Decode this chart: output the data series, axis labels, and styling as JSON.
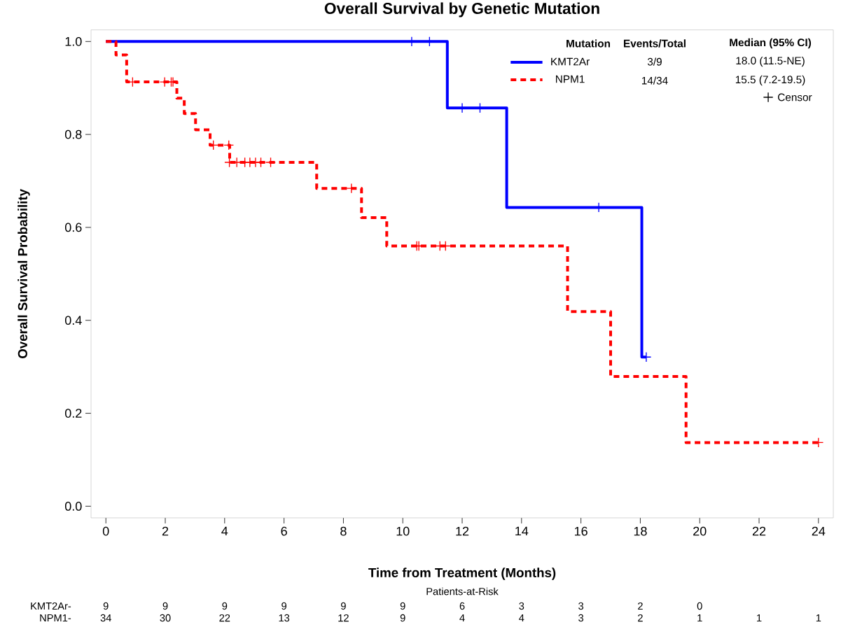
{
  "chart_data": {
    "type": "step",
    "title": "Overall Survival by Genetic Mutation",
    "xlabel": "Time from Treatment (Months)",
    "ylabel": "Overall Survival Probability",
    "legend_title": "Mutation",
    "legend": "top right",
    "xlim": [
      -0.5,
      24.5
    ],
    "ylim": [
      -0.025,
      1.025
    ],
    "xticks": [
      0,
      2,
      4,
      6,
      8,
      10,
      12,
      14,
      16,
      18,
      20,
      22,
      24
    ],
    "yticks": [
      {
        "value": 0,
        "label": "0.0"
      },
      {
        "value": 0.2,
        "label": "0.2"
      },
      {
        "value": 0.4,
        "label": "0.4"
      },
      {
        "value": 0.6,
        "label": "0.6"
      },
      {
        "value": 0.8,
        "label": "0.8"
      },
      {
        "value": 1,
        "label": "1.0"
      }
    ],
    "series": [
      {
        "name": "KMT2Ar",
        "color": "#0000ff",
        "line_style": "solid",
        "x": [
          0,
          11.5,
          13.5,
          18.05,
          18.2
        ],
        "values": [
          1,
          0.857,
          0.643,
          0.321,
          0.321
        ]
      },
      {
        "name": "NPM1",
        "color": "#ff0000",
        "line_style": "dashed",
        "x": [
          0,
          0.34,
          0.7,
          2.39,
          2.64,
          3.02,
          3.51,
          4.17,
          7.1,
          8.61,
          9.46,
          15.55,
          17.0,
          19.54,
          24
        ],
        "values": [
          1,
          0.971,
          0.913,
          0.878,
          0.845,
          0.81,
          0.777,
          0.74,
          0.684,
          0.621,
          0.56,
          0.419,
          0.279,
          0.137,
          0.137
        ]
      },
      {
        "type": "scatter",
        "marker": "cross",
        "color": "#0000ff",
        "x": [
          10.3,
          10.9,
          12.0,
          12.6,
          16.6,
          18.2
        ],
        "values": [
          1,
          1,
          0.857,
          0.857,
          0.643,
          0.321
        ]
      },
      {
        "type": "scatter",
        "marker": "cross",
        "color": "#ff0000",
        "x": [
          0.9,
          1.98,
          2.2,
          2.26,
          3.62,
          4.14,
          4.16,
          4.41,
          4.68,
          4.85,
          5.04,
          5.22,
          5.55,
          8.27,
          10.47,
          10.54,
          11.25,
          11.44,
          24
        ],
        "values": [
          0.913,
          0.913,
          0.913,
          0.913,
          0.777,
          0.777,
          0.74,
          0.74,
          0.74,
          0.74,
          0.74,
          0.74,
          0.74,
          0.684,
          0.56,
          0.56,
          0.56,
          0.56,
          0.137
        ]
      }
    ],
    "annotations": [
      "Events/Total",
      "Median (95% CI)",
      "3/9",
      "18.0 (11.5-NE)",
      "14/34",
      "15.5 (7.2-19.5)",
      "Censor",
      "Patients-at-Risk",
      "KMT2Ar-",
      "9",
      "9",
      "9",
      "9",
      "9",
      "9",
      "6",
      "3",
      "3",
      "2",
      "0",
      "NPM1-",
      "34",
      "30",
      "22",
      "13",
      "12",
      "9",
      "4",
      "4",
      "3",
      "2",
      "1",
      "1",
      "1"
    ]
  }
}
